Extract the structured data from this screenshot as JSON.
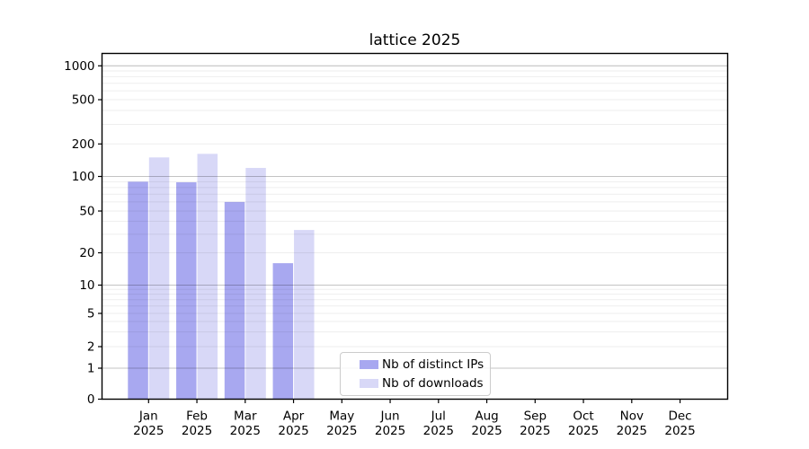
{
  "figure": {
    "background": "#ffffff"
  },
  "chart_data": {
    "type": "bar",
    "title": "lattice 2025",
    "x_tick_labels": [
      [
        "Jan",
        "2025"
      ],
      [
        "Feb",
        "2025"
      ],
      [
        "Mar",
        "2025"
      ],
      [
        "Apr",
        "2025"
      ],
      [
        "May",
        "2025"
      ],
      [
        "Jun",
        "2025"
      ],
      [
        "Jul",
        "2025"
      ],
      [
        "Aug",
        "2025"
      ],
      [
        "Sep",
        "2025"
      ],
      [
        "Oct",
        "2025"
      ],
      [
        "Nov",
        "2025"
      ],
      [
        "Dec",
        "2025"
      ]
    ],
    "series": [
      {
        "name": "Nb of distinct IPs",
        "color": "#a8a8f0",
        "values": [
          90,
          89,
          60,
          16,
          0,
          0,
          0,
          0,
          0,
          0,
          0,
          0
        ]
      },
      {
        "name": "Nb of downloads",
        "color": "#d8d8f7",
        "values": [
          150,
          162,
          120,
          33,
          0,
          0,
          0,
          0,
          0,
          0,
          0,
          0
        ]
      }
    ],
    "y_axis": {
      "scale": "log-like, compressed toward zero",
      "range": [
        0,
        1000
      ],
      "ticks": [
        0,
        1,
        2,
        5,
        10,
        20,
        50,
        100,
        200,
        500,
        1000
      ],
      "tick_labels": [
        "0",
        "1",
        "2",
        "5",
        "10",
        "20",
        "50",
        "100",
        "200",
        "500",
        "1000"
      ],
      "major_gridlines": [
        1,
        10,
        100,
        1000
      ],
      "minor_gridlines": [
        2,
        3,
        4,
        5,
        6,
        7,
        8,
        9,
        20,
        30,
        40,
        50,
        60,
        70,
        80,
        90,
        200,
        300,
        400,
        500,
        600,
        700,
        800,
        900
      ]
    },
    "grid": true,
    "legend": {
      "position": "lower-center",
      "items": [
        "Nb of distinct IPs",
        "Nb of downloads"
      ]
    }
  }
}
